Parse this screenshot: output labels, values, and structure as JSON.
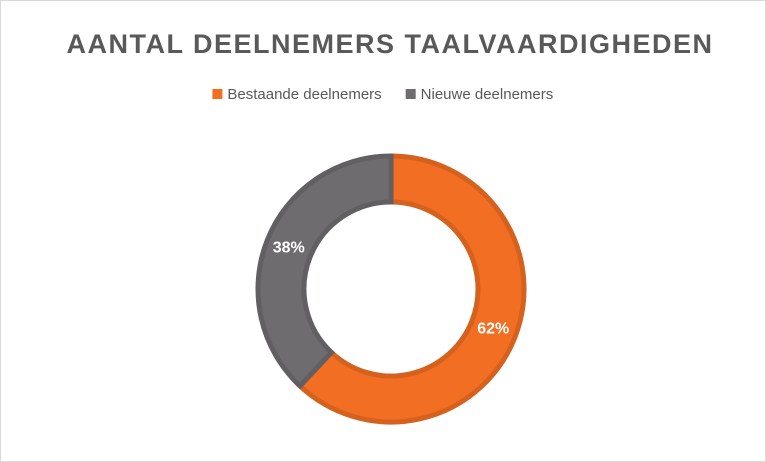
{
  "chart_data": {
    "type": "donut",
    "title": "AANTAL DEELNEMERS TAALVAARDIGHEDEN",
    "categories": [
      "Bestaande deelnemers",
      "Nieuwe deelnemers"
    ],
    "values": [
      62,
      38
    ],
    "value_labels": [
      "62%",
      "38%"
    ],
    "colors": [
      "#f26e22",
      "#6f6c6f"
    ],
    "legend": "top"
  }
}
